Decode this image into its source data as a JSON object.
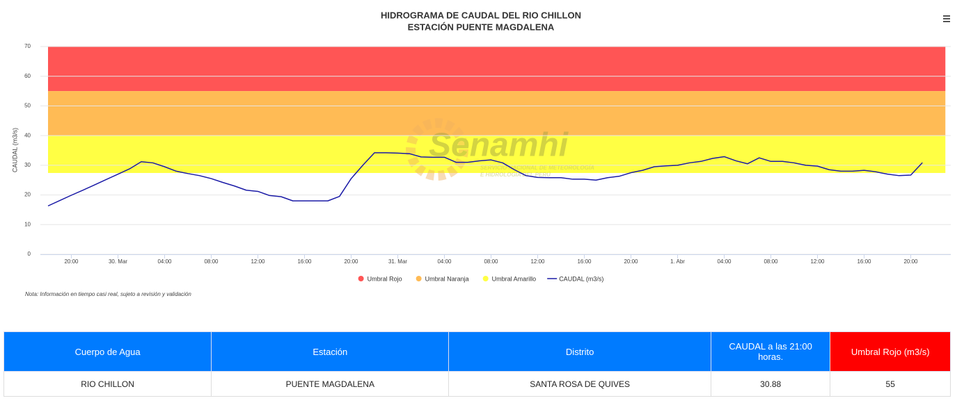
{
  "chart_data": {
    "type": "line",
    "title": "HIDROGRAMA DE CAUDAL DEL RIO CHILLON",
    "subtitle": "ESTACIÓN PUENTE MAGDALENA",
    "ylabel": "CAUDAL (m3/s)",
    "note": "Nota: Información en tiempo casi real, sujeto a revisión y validación",
    "watermark": {
      "name": "Senamhi",
      "line1": "SERVICIO NACIONAL DE METEOROLOGÍA",
      "line2": "E HIDROLOGÍA DEL PERÚ"
    },
    "categories": [
      null,
      null,
      "20:00",
      null,
      null,
      null,
      "30. Mar",
      null,
      null,
      null,
      "04:00",
      null,
      null,
      null,
      "08:00",
      null,
      null,
      null,
      "12:00",
      null,
      null,
      null,
      "16:00",
      null,
      null,
      null,
      "20:00",
      null,
      null,
      null,
      "31. Mar",
      null,
      null,
      null,
      "04:00",
      null,
      null,
      null,
      "08:00",
      null,
      null,
      null,
      "12:00",
      null,
      null,
      null,
      "16:00",
      null,
      null,
      null,
      "20:00",
      null,
      null,
      null,
      "1. Abr",
      null,
      null,
      null,
      "04:00",
      null,
      null,
      null,
      "08:00",
      null,
      null,
      null,
      "12:00",
      null,
      null,
      null,
      "16:00",
      null,
      null,
      null,
      "20:00",
      null
    ],
    "series": [
      {
        "name": "CAUDAL (m3/s)",
        "color": "#1a1aa6",
        "values": [
          16.3,
          18.1,
          19.9,
          21.6,
          23.4,
          25.2,
          27.0,
          28.8,
          31.2,
          30.8,
          29.5,
          28.0,
          27.2,
          26.5,
          25.5,
          24.2,
          23.0,
          21.6,
          21.2,
          19.8,
          19.4,
          18.0,
          18.0,
          18.0,
          18.0,
          19.5,
          25.5,
          30.0,
          34.2,
          34.2,
          34.1,
          33.9,
          32.8,
          32.7,
          32.7,
          31.0,
          31.0,
          31.5,
          31.8,
          30.8,
          28.5,
          26.5,
          25.9,
          25.8,
          25.8,
          25.3,
          25.3,
          25.0,
          25.8,
          26.3,
          27.5,
          28.3,
          29.5,
          29.8,
          30.0,
          30.8,
          31.3,
          32.3,
          32.9,
          31.5,
          30.5,
          32.5,
          31.3,
          31.3,
          30.8,
          30.0,
          29.7,
          28.5,
          28.0,
          28.0,
          28.3,
          27.8,
          27.0,
          26.5,
          26.7,
          30.88
        ]
      }
    ],
    "bands": [
      {
        "name": "Umbral Rojo",
        "color": "#ff5555",
        "from": 55,
        "to": 70
      },
      {
        "name": "Umbral Naranja",
        "color": "#ffbb55",
        "from": 40,
        "to": 55
      },
      {
        "name": "Umbral Amarillo",
        "color": "#ffff44",
        "from": 27.4,
        "to": 40
      }
    ],
    "ylim": [
      0,
      70
    ],
    "yticks": [
      0,
      10,
      20,
      30,
      40,
      50,
      60,
      70
    ],
    "grid": true,
    "legend": "bottom"
  },
  "table": {
    "headers": [
      "Cuerpo de Agua",
      "Estación",
      "Distrito",
      "CAUDAL a las 21:00 horas.",
      "Umbral Rojo (m3/s)"
    ],
    "rows": [
      [
        "RIO CHILLON",
        "PUENTE MAGDALENA",
        "SANTA ROSA DE QUIVES",
        "30.88",
        "55"
      ]
    ]
  }
}
